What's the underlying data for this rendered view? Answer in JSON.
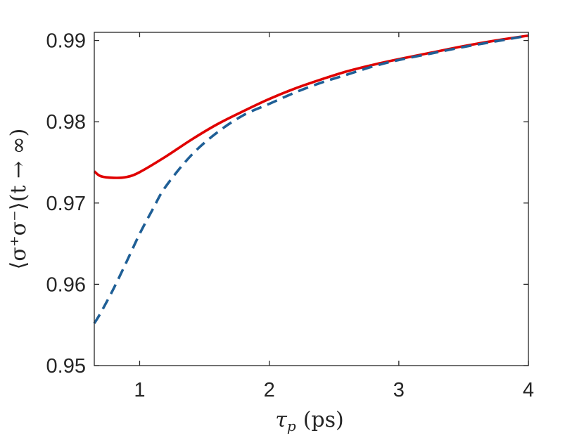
{
  "chart_data": {
    "type": "line",
    "xlabel": {
      "main": "τ",
      "sub": "p",
      "unit": "(ps)"
    },
    "ylabel": "⟨σ⁺σ⁻⟩(t → ∞)",
    "xlim": [
      0.65,
      4
    ],
    "ylim": [
      0.95,
      0.991
    ],
    "xticks": [
      1,
      2,
      3,
      4
    ],
    "xtick_labels": [
      "1",
      "2",
      "3",
      "4"
    ],
    "yticks": [
      0.95,
      0.96,
      0.97,
      0.98,
      0.99
    ],
    "ytick_labels": [
      "0.95",
      "0.96",
      "0.97",
      "0.98",
      "0.99"
    ],
    "grid": false,
    "box": true,
    "series": [
      {
        "color": "#e00000",
        "style": "solid",
        "x": [
          0.65,
          0.7,
          0.8,
          0.9,
          1.0,
          1.2,
          1.4,
          1.6,
          1.8,
          2.0,
          2.2,
          2.4,
          2.6,
          2.8,
          3.0,
          3.25,
          3.5,
          3.75,
          4.0
        ],
        "y": [
          0.9739,
          0.9733,
          0.9731,
          0.9732,
          0.9738,
          0.9757,
          0.9778,
          0.9797,
          0.9813,
          0.9828,
          0.9841,
          0.9852,
          0.9862,
          0.987,
          0.9877,
          0.9885,
          0.9893,
          0.99,
          0.9906
        ]
      },
      {
        "color": "#1f5f96",
        "style": "dashed",
        "x": [
          0.65,
          0.7,
          0.8,
          0.9,
          1.0,
          1.1,
          1.2,
          1.4,
          1.6,
          1.8,
          2.0,
          2.2,
          2.4,
          2.6,
          2.8,
          3.0,
          3.25,
          3.5,
          3.75,
          4.0
        ],
        "y": [
          0.9552,
          0.9565,
          0.9595,
          0.9628,
          0.9662,
          0.9692,
          0.972,
          0.9759,
          0.9787,
          0.9808,
          0.9822,
          0.9836,
          0.9848,
          0.9858,
          0.9868,
          0.9876,
          0.9884,
          0.9892,
          0.9899,
          0.9906
        ]
      }
    ]
  }
}
